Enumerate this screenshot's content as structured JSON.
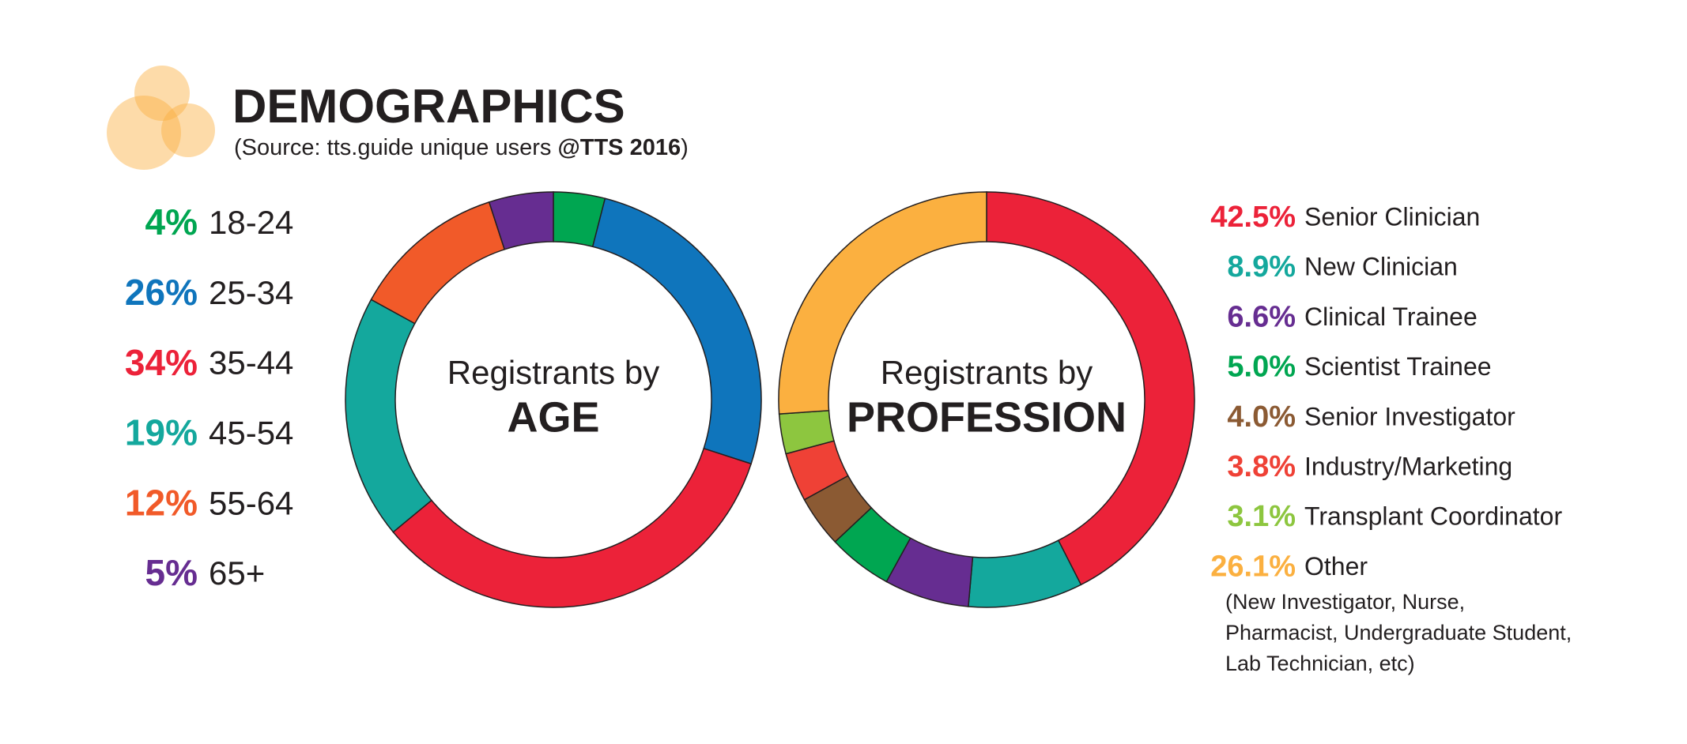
{
  "header": {
    "title": "DEMOGRAPHICS",
    "subtitle": [
      "(Source: tts.guide unique users ",
      "@TTS 2016",
      ")"
    ]
  },
  "chart_data": [
    {
      "type": "donut",
      "center_label": [
        "Registrants by",
        "AGE"
      ],
      "categories": [
        "18-24",
        "25-34",
        "35-44",
        "45-54",
        "55-64",
        "65+"
      ],
      "values": [
        4,
        26,
        34,
        19,
        12,
        5
      ],
      "value_labels": [
        "4%",
        "26%",
        "34%",
        "19%",
        "12%",
        "5%"
      ],
      "colors": [
        "#00a651",
        "#0f75bc",
        "#ec2239",
        "#14a89d",
        "#f15a29",
        "#662d91"
      ]
    },
    {
      "type": "donut",
      "center_label": [
        "Registrants by",
        "PROFESSION"
      ],
      "categories": [
        "Senior Clinician",
        "New Clinician",
        "Clinical Trainee",
        "Scientist Trainee",
        "Senior Investigator",
        "Industry/Marketing",
        "Transplant Coordinator",
        "Other"
      ],
      "values": [
        42.5,
        8.9,
        6.6,
        5.0,
        4.0,
        3.8,
        3.1,
        26.1
      ],
      "value_labels": [
        "42.5%",
        "8.9%",
        "6.6%",
        "5.0%",
        "4.0%",
        "3.8%",
        "3.1%",
        "26.1%"
      ],
      "colors": [
        "#ec2239",
        "#14a89d",
        "#662d91",
        "#00a651",
        "#8b5a33",
        "#ef4136",
        "#8dc63f",
        "#fbb040"
      ],
      "note": [
        "(New Investigator, Nurse,",
        "Pharmacist, Undergraduate Student,",
        "Lab Technician, etc)"
      ]
    }
  ]
}
